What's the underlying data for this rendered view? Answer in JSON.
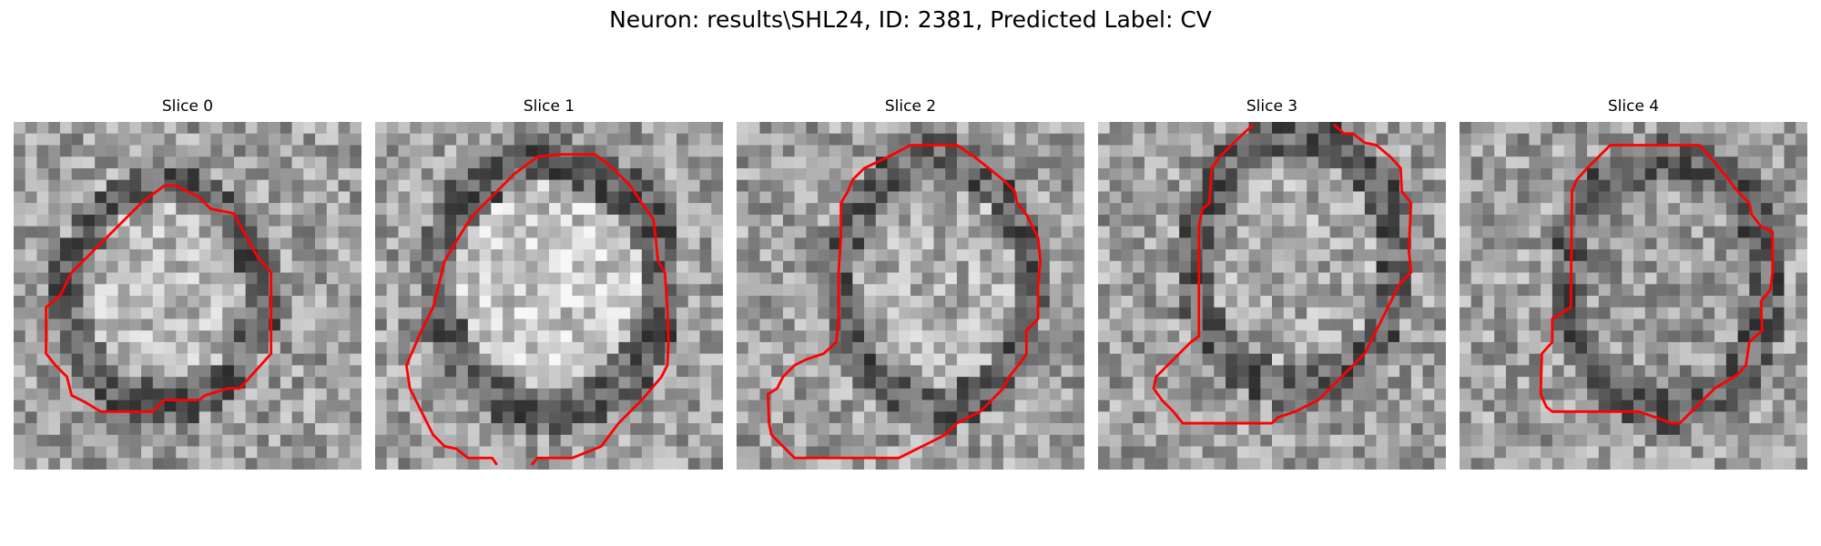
{
  "figure": {
    "title": "Neuron: results\\SHL24, ID: 2381, Predicted Label: CV"
  },
  "contour_color": "#ff0000",
  "slices": [
    {
      "title": "Slice 0"
    },
    {
      "title": "Slice 1"
    },
    {
      "title": "Slice 2"
    },
    {
      "title": "Slice 3"
    },
    {
      "title": "Slice 4"
    }
  ]
}
